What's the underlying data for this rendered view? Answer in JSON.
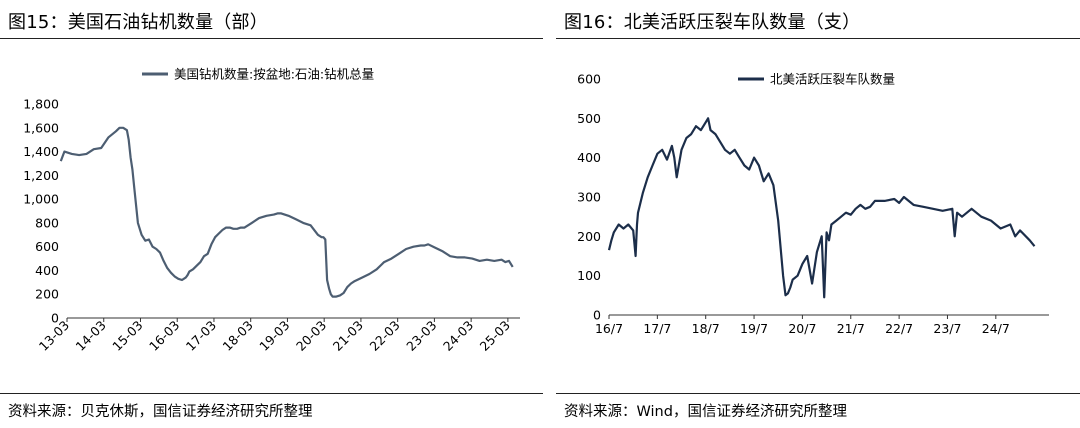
{
  "left": {
    "title": "图15：美国石油钻机数量（部）",
    "source": "资料来源：贝克休斯，国信证券经济研究所整理",
    "chart_data": {
      "type": "line",
      "title": "图15：美国石油钻机数量（部）",
      "xlabel": "",
      "ylabel": "",
      "ylim": [
        0,
        1800
      ],
      "yticks": [
        0,
        200,
        400,
        600,
        800,
        1000,
        1200,
        1400,
        1600,
        1800
      ],
      "ytick_labels": [
        "0",
        "200",
        "400",
        "600",
        "800",
        "1,000",
        "1,200",
        "1,400",
        "1,600",
        "1,800"
      ],
      "xlim": [
        2013.17,
        2025.5
      ],
      "xticks": [
        2013.17,
        2014.17,
        2015.17,
        2016.17,
        2017.17,
        2018.17,
        2019.17,
        2020.17,
        2021.17,
        2022.17,
        2023.17,
        2024.17,
        2025.17
      ],
      "xtick_labels": [
        "13-03",
        "14-03",
        "15-03",
        "16-03",
        "17-03",
        "18-03",
        "19-03",
        "20-03",
        "21-03",
        "22-03",
        "23-03",
        "24-03",
        "25-03"
      ],
      "x_label_rotation": -45,
      "grid": false,
      "legend_position": "top",
      "color": "#4d5e72",
      "series": [
        {
          "name": "美国钻机数量:按盆地:石油:钻机总量",
          "x": [
            2013.0,
            2013.1,
            2013.3,
            2013.5,
            2013.7,
            2013.9,
            2014.1,
            2014.3,
            2014.5,
            2014.6,
            2014.7,
            2014.8,
            2014.85,
            2014.9,
            2014.95,
            2015.0,
            2015.1,
            2015.2,
            2015.3,
            2015.4,
            2015.5,
            2015.6,
            2015.7,
            2015.8,
            2015.9,
            2016.0,
            2016.1,
            2016.2,
            2016.3,
            2016.4,
            2016.45,
            2016.5,
            2016.6,
            2016.7,
            2016.8,
            2016.9,
            2017.0,
            2017.1,
            2017.2,
            2017.3,
            2017.4,
            2017.5,
            2017.6,
            2017.7,
            2017.8,
            2017.9,
            2018.0,
            2018.2,
            2018.4,
            2018.6,
            2018.8,
            2018.9,
            2019.0,
            2019.2,
            2019.4,
            2019.6,
            2019.8,
            2020.0,
            2020.1,
            2020.15,
            2020.2,
            2020.25,
            2020.3,
            2020.35,
            2020.4,
            2020.5,
            2020.6,
            2020.7,
            2020.8,
            2020.9,
            2021.0,
            2021.2,
            2021.4,
            2021.6,
            2021.8,
            2022.0,
            2022.2,
            2022.4,
            2022.6,
            2022.8,
            2022.9,
            2023.0,
            2023.2,
            2023.4,
            2023.6,
            2023.8,
            2024.0,
            2024.2,
            2024.4,
            2024.6,
            2024.8,
            2025.0,
            2025.1,
            2025.2,
            2025.3
          ],
          "values": [
            1320,
            1400,
            1380,
            1370,
            1380,
            1420,
            1430,
            1520,
            1570,
            1600,
            1600,
            1580,
            1500,
            1350,
            1250,
            1100,
            800,
            700,
            650,
            660,
            600,
            580,
            550,
            480,
            420,
            380,
            350,
            330,
            320,
            340,
            360,
            390,
            410,
            440,
            470,
            520,
            540,
            620,
            680,
            710,
            740,
            760,
            760,
            750,
            750,
            760,
            760,
            800,
            840,
            860,
            870,
            880,
            880,
            860,
            830,
            800,
            780,
            700,
            680,
            680,
            660,
            320,
            250,
            200,
            180,
            180,
            190,
            210,
            260,
            290,
            310,
            340,
            370,
            410,
            470,
            500,
            540,
            580,
            600,
            610,
            610,
            620,
            590,
            560,
            520,
            510,
            510,
            500,
            480,
            490,
            480,
            490,
            470,
            480,
            430
          ]
        }
      ]
    }
  },
  "right": {
    "title": "图16：北美活跃压裂车队数量（支）",
    "source": "资料来源：Wind，国信证券经济研究所整理",
    "chart_data": {
      "type": "line",
      "title": "图16：北美活跃压裂车队数量（支）",
      "xlabel": "",
      "ylabel": "",
      "ylim": [
        0,
        600
      ],
      "yticks": [
        0,
        100,
        200,
        300,
        400,
        500,
        600
      ],
      "ytick_labels": [
        "0",
        "100",
        "200",
        "300",
        "400",
        "500",
        "600"
      ],
      "xlim": [
        2016.5,
        2025.6
      ],
      "xticks": [
        2016.5,
        2017.5,
        2018.5,
        2019.5,
        2020.5,
        2021.5,
        2022.5,
        2023.5,
        2024.5
      ],
      "xtick_labels": [
        "16/7",
        "17/7",
        "18/7",
        "19/7",
        "20/7",
        "21/7",
        "22/7",
        "23/7",
        "24/7"
      ],
      "grid": false,
      "legend_position": "top",
      "color": "#1c2e4a",
      "series": [
        {
          "name": "北美活跃压裂车队数量",
          "x": [
            2016.5,
            2016.55,
            2016.6,
            2016.7,
            2016.8,
            2016.9,
            2017.0,
            2017.05,
            2017.08,
            2017.1,
            2017.2,
            2017.3,
            2017.4,
            2017.5,
            2017.6,
            2017.7,
            2017.8,
            2017.85,
            2017.9,
            2018.0,
            2018.1,
            2018.2,
            2018.3,
            2018.4,
            2018.5,
            2018.55,
            2018.6,
            2018.7,
            2018.8,
            2018.9,
            2019.0,
            2019.1,
            2019.2,
            2019.3,
            2019.4,
            2019.5,
            2019.6,
            2019.7,
            2019.8,
            2019.9,
            2020.0,
            2020.1,
            2020.15,
            2020.2,
            2020.25,
            2020.3,
            2020.4,
            2020.5,
            2020.6,
            2020.7,
            2020.8,
            2020.9,
            2020.95,
            2021.0,
            2021.05,
            2021.1,
            2021.2,
            2021.3,
            2021.4,
            2021.5,
            2021.6,
            2021.7,
            2021.8,
            2021.9,
            2022.0,
            2022.2,
            2022.4,
            2022.5,
            2022.6,
            2022.8,
            2023.0,
            2023.2,
            2023.4,
            2023.6,
            2023.65,
            2023.7,
            2023.8,
            2024.0,
            2024.2,
            2024.4,
            2024.6,
            2024.8,
            2024.9,
            2025.0,
            2025.2,
            2025.3
          ],
          "values": [
            165,
            190,
            210,
            230,
            220,
            230,
            215,
            150,
            230,
            260,
            310,
            350,
            380,
            410,
            420,
            395,
            430,
            400,
            350,
            420,
            450,
            460,
            480,
            470,
            490,
            500,
            470,
            460,
            440,
            420,
            410,
            420,
            400,
            380,
            370,
            400,
            380,
            340,
            360,
            330,
            240,
            100,
            50,
            55,
            70,
            90,
            100,
            130,
            150,
            80,
            160,
            200,
            45,
            210,
            190,
            230,
            240,
            250,
            260,
            255,
            270,
            280,
            270,
            275,
            290,
            290,
            295,
            285,
            300,
            280,
            275,
            270,
            265,
            270,
            200,
            260,
            250,
            270,
            250,
            240,
            220,
            230,
            200,
            215,
            190,
            175
          ]
        }
      ]
    }
  }
}
